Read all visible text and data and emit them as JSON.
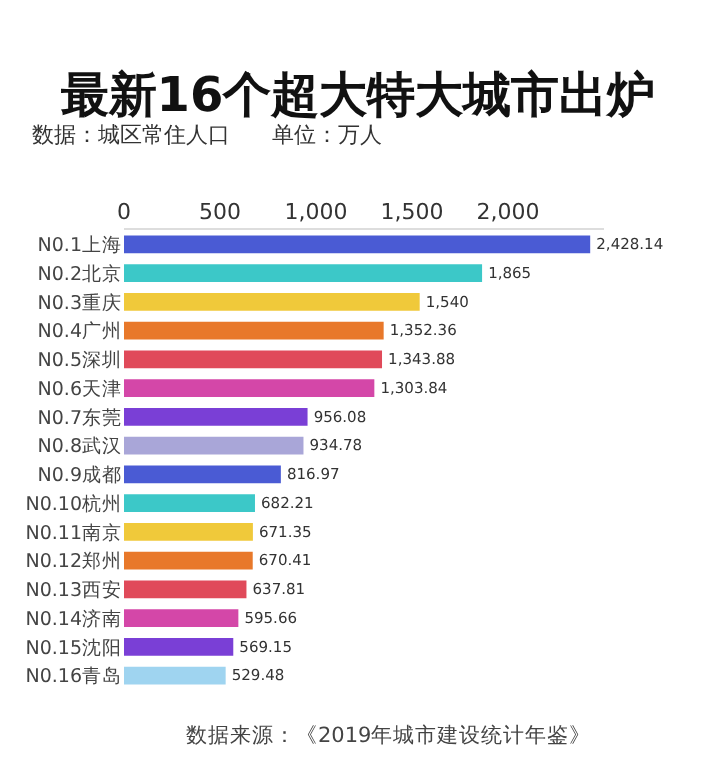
{
  "chart_data": {
    "type": "bar",
    "orientation": "horizontal",
    "title": "最新16个超大特大城市出炉",
    "subtitle": "数据：城区常住人口      单位：万人",
    "categories": [
      "N0.1上海",
      "N0.2北京",
      "N0.3重庆",
      "N0.4广州",
      "N0.5深圳",
      "N0.6天津",
      "N0.7东莞",
      "N0.8武汉",
      "N0.9成都",
      "N0.10杭州",
      "N0.11南京",
      "N0.12郑州",
      "N0.13西安",
      "N0.14济南",
      "N0.15沈阳",
      "N0.16青岛"
    ],
    "values": [
      2428.14,
      1865,
      1540,
      1352.36,
      1343.88,
      1303.84,
      956.08,
      934.78,
      816.97,
      682.21,
      671.35,
      670.41,
      637.81,
      595.66,
      569.15,
      529.48
    ],
    "value_labels": [
      "2,428.14",
      "1,865",
      "1,540",
      "1,352.36",
      "1,343.88",
      "1,303.84",
      "956.08",
      "934.78",
      "816.97",
      "682.21",
      "671.35",
      "670.41",
      "637.81",
      "595.66",
      "569.15",
      "529.48"
    ],
    "colors": [
      "#4a5bd4",
      "#3cc8c8",
      "#f0c93a",
      "#e8782a",
      "#e04a5a",
      "#d447a8",
      "#7a3fd6",
      "#a9a6d8",
      "#4a5bd4",
      "#3cc8c8",
      "#f0c93a",
      "#e8782a",
      "#e04a5a",
      "#d447a8",
      "#7a3fd6",
      "#9fd4f0"
    ],
    "xlim": [
      0,
      2500
    ],
    "xticks": [
      0,
      {
        "value": 500,
        "label": "500"
      },
      {
        "value": 1000,
        "label": "1,000"
      },
      {
        "value": 1500,
        "label": "1,500"
      },
      {
        "value": 2000,
        "label": "2,000"
      }
    ],
    "grid": false,
    "legend": false,
    "annotations": [
      "数据来源：《2019年城市建设统计年鉴》"
    ]
  }
}
